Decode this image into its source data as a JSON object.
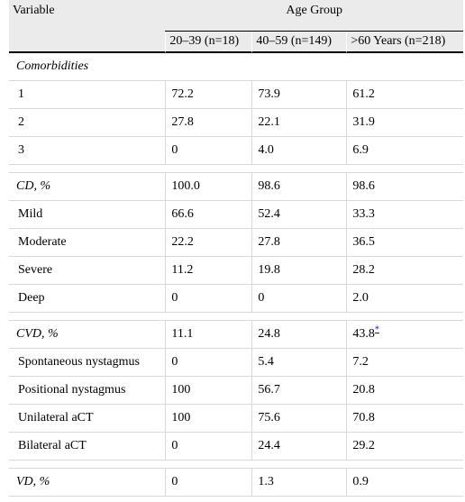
{
  "table": {
    "header": {
      "variable_label": "Variable",
      "group_label": "Age Group",
      "columns": [
        "20–39 (n=18)",
        "40–59 (n=149)",
        ">60 Years (n=218)"
      ]
    },
    "sections": [
      {
        "title": "Comorbidities",
        "title_only": true,
        "rows": [
          {
            "label": "1",
            "values": [
              "72.2",
              "73.9",
              "61.2"
            ]
          },
          {
            "label": "2",
            "values": [
              "27.8",
              "22.1",
              "31.9"
            ]
          },
          {
            "label": "3",
            "values": [
              "0",
              "4.0",
              "6.9"
            ]
          }
        ]
      },
      {
        "title": "CD, %",
        "values": [
          "100.0",
          "98.6",
          "98.6"
        ],
        "rows": [
          {
            "label": "Mild",
            "values": [
              "66.6",
              "52.4",
              "33.3"
            ]
          },
          {
            "label": "Moderate",
            "values": [
              "22.2",
              "27.8",
              "36.5"
            ]
          },
          {
            "label": "Severe",
            "values": [
              "11.2",
              "19.8",
              "28.2"
            ]
          },
          {
            "label": "Deep",
            "values": [
              "0",
              "0",
              "2.0"
            ]
          }
        ]
      },
      {
        "title": "CVD, %",
        "values": [
          "11.1",
          "24.8",
          "43.8"
        ],
        "footnote_marker": "*",
        "rows": [
          {
            "label": "Spontaneous nystagmus",
            "values": [
              "0",
              "5.4",
              "7.2"
            ]
          },
          {
            "label": "Positional nystagmus",
            "values": [
              "100",
              "56.7",
              "20.8"
            ]
          },
          {
            "label": "Unilateral aCT",
            "values": [
              "100",
              "75.6",
              "70.8"
            ]
          },
          {
            "label": "Bilateral aCT",
            "values": [
              "0",
              "24.4",
              "29.2"
            ]
          }
        ]
      },
      {
        "title": "VD, %",
        "values": [
          "0",
          "1.3",
          "0.9"
        ],
        "rows": []
      }
    ]
  }
}
